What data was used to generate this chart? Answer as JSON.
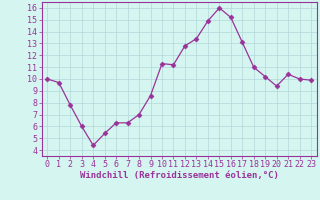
{
  "x": [
    0,
    1,
    2,
    3,
    4,
    5,
    6,
    7,
    8,
    9,
    10,
    11,
    12,
    13,
    14,
    15,
    16,
    17,
    18,
    19,
    20,
    21,
    22,
    23
  ],
  "y": [
    10,
    9.7,
    7.8,
    6.0,
    4.4,
    5.4,
    6.3,
    6.3,
    7.0,
    8.6,
    11.3,
    11.2,
    12.8,
    13.4,
    14.9,
    16.0,
    15.2,
    13.1,
    11.0,
    10.2,
    9.4,
    10.4,
    10.0,
    9.9
  ],
  "line_color": "#993399",
  "marker": "D",
  "marker_size": 2.5,
  "bg_color": "#d5f5f0",
  "grid_color": "#b0d8d8",
  "xlabel": "Windchill (Refroidissement éolien,°C)",
  "xlim": [
    -0.5,
    23.5
  ],
  "ylim": [
    3.5,
    16.5
  ],
  "yticks": [
    4,
    5,
    6,
    7,
    8,
    9,
    10,
    11,
    12,
    13,
    14,
    15,
    16
  ],
  "xticks": [
    0,
    1,
    2,
    3,
    4,
    5,
    6,
    7,
    8,
    9,
    10,
    11,
    12,
    13,
    14,
    15,
    16,
    17,
    18,
    19,
    20,
    21,
    22,
    23
  ],
  "tick_color": "#993399",
  "axis_color": "#993399",
  "label_fontsize": 6.5,
  "tick_fontsize": 6.0
}
